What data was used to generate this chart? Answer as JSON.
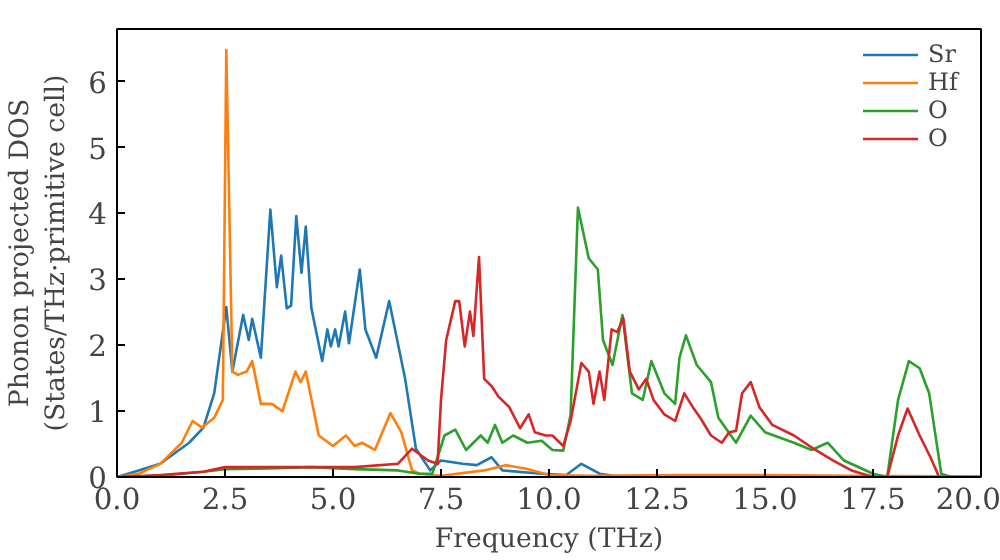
{
  "chart_data": {
    "type": "line",
    "xlabel": "Frequency (THz)",
    "ylabel": "Phonon projected DOS\n(States/THz·primitive cell)",
    "xlim": [
      0,
      20
    ],
    "ylim": [
      0,
      6.8
    ],
    "xticks": [
      {
        "value": 0,
        "label": "0.0"
      },
      {
        "value": 2.5,
        "label": "2.5"
      },
      {
        "value": 5,
        "label": "5.0"
      },
      {
        "value": 7.5,
        "label": "7.5"
      },
      {
        "value": 10,
        "label": "10.0"
      },
      {
        "value": 12.5,
        "label": "12.5"
      },
      {
        "value": 15,
        "label": "15.0"
      },
      {
        "value": 17.5,
        "label": "17.5"
      },
      {
        "value": 20,
        "label": "20.0"
      }
    ],
    "yticks": [
      0,
      1,
      2,
      3,
      4,
      5,
      6
    ],
    "legend": "top right",
    "grid": false,
    "series": [
      {
        "name": "Sr",
        "color": "#1f77b4",
        "x": [
          0,
          0.5,
          1.0,
          1.67,
          2.0,
          2.25,
          2.53,
          2.67,
          2.92,
          3.05,
          3.13,
          3.33,
          3.55,
          3.7,
          3.8,
          3.93,
          4.03,
          4.15,
          4.27,
          4.37,
          4.5,
          4.75,
          4.87,
          4.95,
          5.05,
          5.13,
          5.28,
          5.37,
          5.62,
          5.75,
          6.0,
          6.3,
          6.67,
          6.92,
          7.25,
          7.5,
          8.0,
          8.33,
          8.67,
          8.92,
          9.83,
          10.4,
          10.75,
          11.17,
          11.5,
          20
        ],
        "values": [
          0,
          0.1,
          0.2,
          0.52,
          0.75,
          1.27,
          2.58,
          1.6,
          2.46,
          2.08,
          2.4,
          1.81,
          4.06,
          2.88,
          3.36,
          2.56,
          2.6,
          3.96,
          3.1,
          3.8,
          2.56,
          1.76,
          2.24,
          1.98,
          2.24,
          1.98,
          2.51,
          2.03,
          3.15,
          2.24,
          1.81,
          2.67,
          1.49,
          0.43,
          0.1,
          0.25,
          0.2,
          0.18,
          0.3,
          0.1,
          0.05,
          0.03,
          0.2,
          0.05,
          0.02,
          0
        ]
      },
      {
        "name": "Hf",
        "color": "#ff7f0e",
        "x": [
          0,
          0.5,
          1.0,
          1.5,
          1.75,
          1.97,
          2.25,
          2.45,
          2.53,
          2.67,
          2.8,
          3.0,
          3.13,
          3.33,
          3.58,
          3.83,
          4.13,
          4.25,
          4.37,
          4.67,
          5.0,
          5.3,
          5.5,
          5.67,
          5.97,
          6.33,
          6.58,
          6.83,
          7.0,
          7.5,
          8.5,
          9.0,
          9.5,
          10.0,
          11,
          13,
          15,
          17,
          19,
          20
        ],
        "values": [
          0,
          0.05,
          0.2,
          0.52,
          0.85,
          0.75,
          0.9,
          1.17,
          6.48,
          1.6,
          1.55,
          1.6,
          1.76,
          1.11,
          1.11,
          1.0,
          1.6,
          1.44,
          1.6,
          0.63,
          0.47,
          0.63,
          0.47,
          0.52,
          0.41,
          0.97,
          0.68,
          0.1,
          0.05,
          0.02,
          0.1,
          0.18,
          0.12,
          0.03,
          0.02,
          0.03,
          0.03,
          0.02,
          0.01,
          0
        ]
      },
      {
        "name": "O",
        "color": "#2ca02c",
        "x": [
          0,
          1,
          2,
          2.5,
          3.5,
          4.5,
          5.5,
          6.5,
          7.0,
          7.3,
          7.58,
          7.83,
          8.08,
          8.42,
          8.58,
          8.75,
          8.92,
          9.17,
          9.5,
          9.83,
          10.08,
          10.33,
          10.5,
          10.67,
          10.92,
          11.13,
          11.25,
          11.47,
          11.7,
          11.92,
          12.17,
          12.37,
          12.67,
          12.92,
          13.02,
          13.17,
          13.42,
          13.75,
          13.92,
          14.33,
          14.67,
          15.0,
          15.67,
          16.08,
          16.45,
          16.83,
          17.5,
          17.83,
          18.08,
          18.33,
          18.58,
          18.8,
          19.08,
          19.3,
          20
        ],
        "values": [
          0,
          0.02,
          0.08,
          0.12,
          0.13,
          0.15,
          0.12,
          0.1,
          0.05,
          0.05,
          0.63,
          0.72,
          0.41,
          0.63,
          0.52,
          0.79,
          0.52,
          0.63,
          0.52,
          0.55,
          0.41,
          0.4,
          0.95,
          4.09,
          3.32,
          3.15,
          2.08,
          1.7,
          2.46,
          1.27,
          1.17,
          1.76,
          1.27,
          1.11,
          1.81,
          2.15,
          1.7,
          1.44,
          0.9,
          0.52,
          0.93,
          0.68,
          0.52,
          0.41,
          0.52,
          0.25,
          0.05,
          0,
          1.17,
          1.76,
          1.65,
          1.27,
          0.05,
          0,
          0
        ]
      },
      {
        "name": "O",
        "color": "#d62728",
        "x": [
          0,
          1,
          2,
          2.5,
          3.5,
          4.5,
          5.5,
          6.5,
          6.83,
          7.2,
          7.42,
          7.5,
          7.62,
          7.83,
          7.92,
          8.05,
          8.17,
          8.25,
          8.38,
          8.5,
          8.67,
          8.83,
          9.08,
          9.33,
          9.53,
          9.67,
          9.92,
          10.08,
          10.33,
          10.5,
          10.75,
          10.92,
          11.03,
          11.17,
          11.28,
          11.45,
          11.58,
          11.72,
          11.87,
          12.08,
          12.25,
          12.42,
          12.67,
          12.92,
          13.13,
          13.33,
          13.5,
          13.75,
          14.0,
          14.17,
          14.33,
          14.47,
          14.67,
          14.87,
          15.17,
          15.67,
          16.17,
          16.58,
          17.0,
          17.5,
          17.83,
          18.08,
          18.3,
          18.58,
          18.83,
          19.03,
          20
        ],
        "values": [
          0,
          0.03,
          0.08,
          0.15,
          0.15,
          0.15,
          0.15,
          0.2,
          0.43,
          0.25,
          0.2,
          1.17,
          2.08,
          2.67,
          2.67,
          1.98,
          2.51,
          2.14,
          3.34,
          1.49,
          1.38,
          1.22,
          1.06,
          0.74,
          0.95,
          0.68,
          0.63,
          0.63,
          0.47,
          0.85,
          1.73,
          1.6,
          1.11,
          1.6,
          1.17,
          2.24,
          2.2,
          2.41,
          1.6,
          1.33,
          1.49,
          1.17,
          0.95,
          0.85,
          1.27,
          1.06,
          0.9,
          0.63,
          0.52,
          0.68,
          0.7,
          1.27,
          1.44,
          1.06,
          0.79,
          0.63,
          0.41,
          0.25,
          0.1,
          0,
          0,
          0.63,
          1.04,
          0.63,
          0.3,
          0,
          0
        ]
      }
    ]
  }
}
